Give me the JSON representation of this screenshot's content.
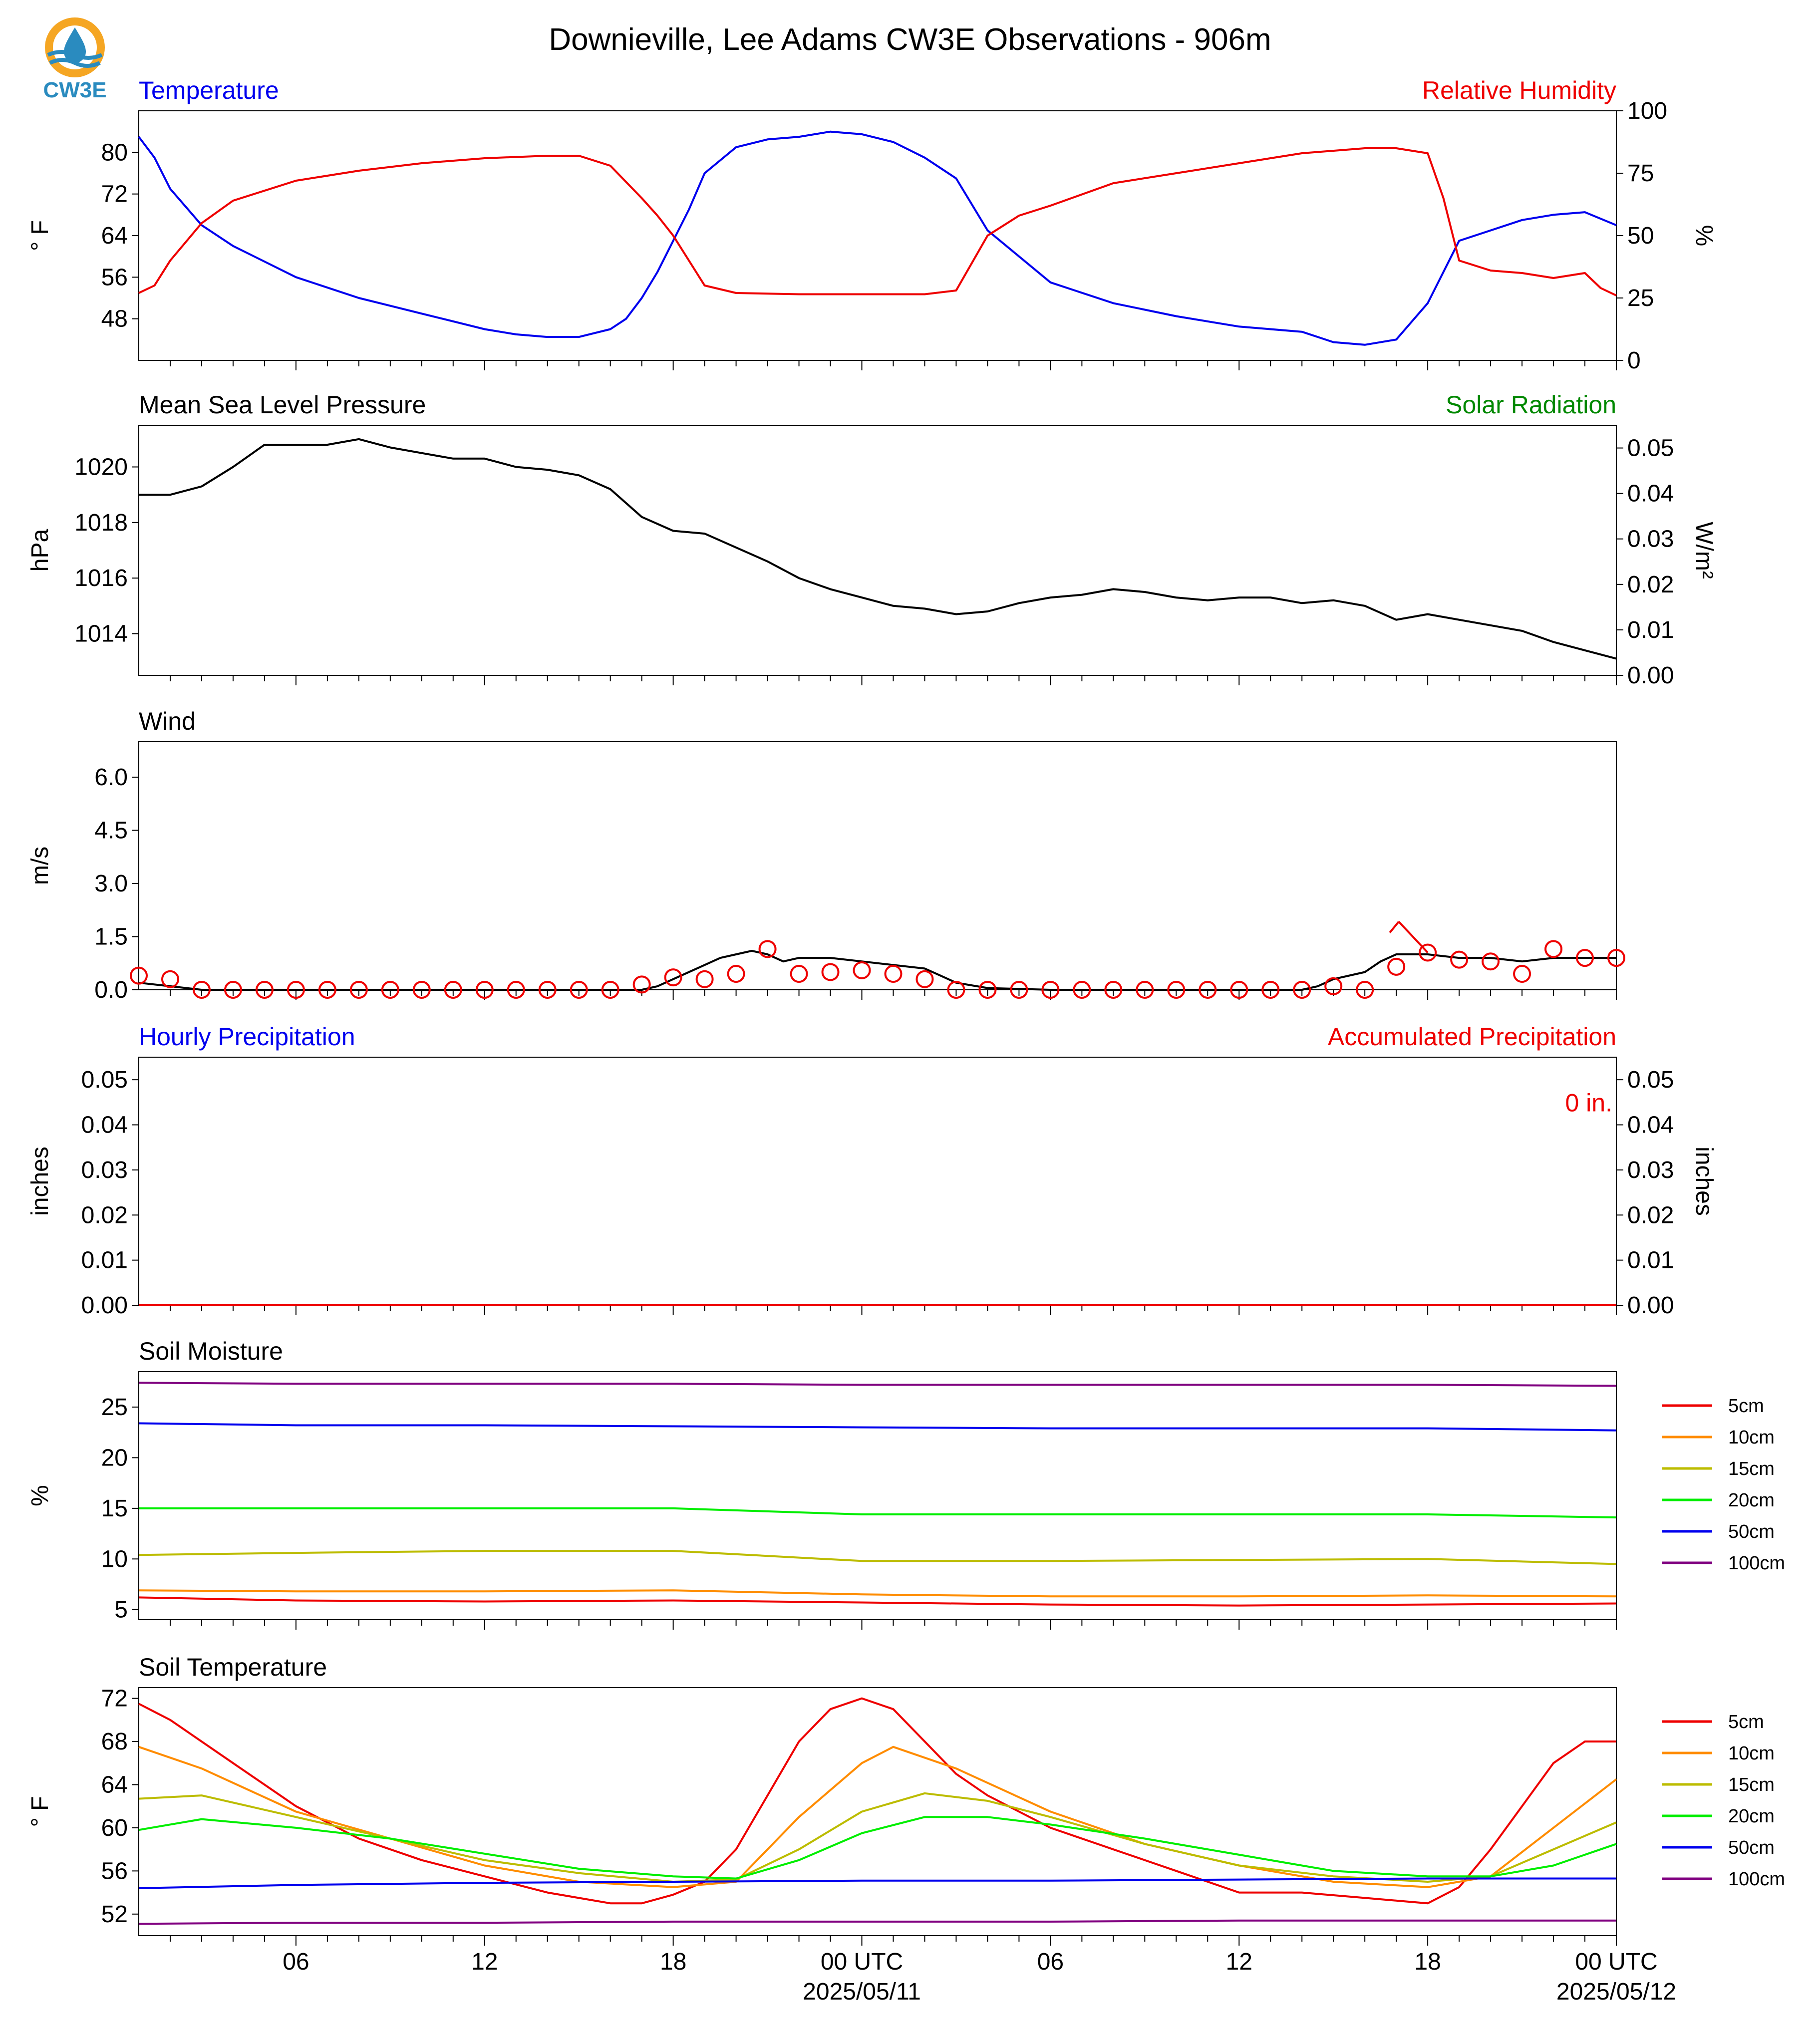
{
  "title": "Downieville, Lee Adams CW3E Observations - 906m",
  "logo_text": "CW3E",
  "colors": {
    "blue": "#0000ee",
    "red": "#ee0000",
    "green": "#008800",
    "black": "#000000",
    "orange": "#ff8c00",
    "olive": "#bcbc00",
    "lime": "#00ee00",
    "purple": "#800080"
  },
  "time_axis": {
    "tick_labels": [
      "06",
      "12",
      "18",
      "00 UTC",
      "06",
      "12",
      "18",
      "00 UTC"
    ],
    "date_labels": [
      "2025/05/11",
      "2025/05/12"
    ]
  },
  "chart_data": [
    {
      "type": "line",
      "name": "temperature_rh",
      "title_left": "Temperature",
      "title_right": "Relative Humidity",
      "ylabel_left": "° F",
      "ylabel_right": "%",
      "ylim_left": [
        40,
        88
      ],
      "yticks_left": [
        48,
        56,
        64,
        72,
        80
      ],
      "ylim_right": [
        0,
        100
      ],
      "yticks_right": [
        0,
        25,
        50,
        75,
        100
      ],
      "x_range": [
        1,
        48
      ],
      "series": [
        {
          "label": "Temperature",
          "color": "#0000ee",
          "axis": "left",
          "x": [
            1,
            1.5,
            2,
            3,
            4,
            6,
            8,
            10,
            12,
            13,
            14,
            15,
            16,
            16.5,
            17,
            17.5,
            18,
            18.5,
            19,
            20,
            21,
            22,
            23,
            24,
            25,
            26,
            27,
            28,
            29,
            30,
            32,
            34,
            36,
            38,
            39,
            40,
            41,
            42,
            43,
            43.5,
            44,
            45,
            46,
            47,
            48
          ],
          "y": [
            83,
            79,
            73,
            66,
            62,
            56,
            52,
            49,
            46,
            45,
            44.5,
            44.5,
            46,
            48,
            52,
            57,
            63,
            69,
            76,
            81,
            82.5,
            83,
            84,
            83.5,
            82,
            79,
            75,
            65,
            60,
            55,
            51,
            48.5,
            46.5,
            45.5,
            43.5,
            43,
            44,
            51,
            63,
            64,
            65,
            67,
            68,
            68.5,
            66
          ]
        },
        {
          "label": "Relative Humidity",
          "color": "#ee0000",
          "axis": "right",
          "x": [
            1,
            1.5,
            2,
            3,
            4,
            6,
            8,
            10,
            12,
            14,
            15,
            16,
            17,
            17.5,
            18,
            19,
            20,
            22,
            24,
            26,
            27,
            28,
            29,
            30,
            32,
            34,
            36,
            38,
            40,
            41,
            42,
            42.5,
            43,
            44,
            45,
            46,
            47,
            47.5,
            48
          ],
          "y": [
            27,
            30,
            40,
            55,
            64,
            72,
            76,
            79,
            81,
            82,
            82,
            78,
            65,
            58,
            50,
            30,
            27,
            26.5,
            26.5,
            26.5,
            28,
            50,
            58,
            62,
            71,
            75,
            79,
            83,
            85,
            85,
            83,
            65,
            40,
            36,
            35,
            33,
            35,
            29,
            26
          ]
        }
      ]
    },
    {
      "type": "line",
      "name": "pressure_solar",
      "title_left": "Mean Sea Level Pressure",
      "title_right": "Solar Radiation",
      "ylabel_left": "hPa",
      "ylabel_right": "W/m²",
      "ylim_left": [
        1012.5,
        1021.5
      ],
      "yticks_left": [
        1014,
        1016,
        1018,
        1020
      ],
      "ylim_right": [
        0,
        0.055
      ],
      "yticks_right": [
        0,
        0.01,
        0.02,
        0.03,
        0.04,
        0.05
      ],
      "x_range": [
        1,
        48
      ],
      "series": [
        {
          "label": "Pressure",
          "color": "#000000",
          "axis": "left",
          "x": [
            1,
            2,
            3,
            4,
            5,
            6,
            7,
            8,
            9,
            10,
            11,
            12,
            13,
            14,
            15,
            16,
            17,
            18,
            19,
            20,
            21,
            22,
            23,
            24,
            25,
            26,
            27,
            28,
            29,
            30,
            31,
            32,
            33,
            34,
            35,
            36,
            37,
            38,
            39,
            40,
            41,
            42,
            43,
            44,
            45,
            46,
            47,
            48
          ],
          "y": [
            1019,
            1019,
            1019.3,
            1020,
            1020.8,
            1020.8,
            1020.8,
            1021,
            1020.7,
            1020.5,
            1020.3,
            1020.3,
            1020,
            1019.9,
            1019.7,
            1019.2,
            1018.2,
            1017.7,
            1017.6,
            1017.1,
            1016.6,
            1016,
            1015.6,
            1015.3,
            1015,
            1014.9,
            1014.7,
            1014.8,
            1015.1,
            1015.3,
            1015.4,
            1015.6,
            1015.5,
            1015.3,
            1015.2,
            1015.3,
            1015.3,
            1015.1,
            1015.2,
            1015,
            1014.5,
            1014.7,
            1014.5,
            1014.3,
            1014.1,
            1013.7,
            1013.4,
            1013.1
          ]
        }
      ]
    },
    {
      "type": "line",
      "name": "wind",
      "title_left": "Wind",
      "ylabel_left": "m/s",
      "ylim_left": [
        0,
        7
      ],
      "yticks_left": [
        0.0,
        1.5,
        3.0,
        4.5,
        6.0
      ],
      "x_range": [
        1,
        48
      ],
      "series": [
        {
          "label": "Wind speed",
          "color": "#000000",
          "axis": "left",
          "x": [
            1,
            2,
            3,
            4,
            6,
            8,
            10,
            12,
            14,
            16,
            17,
            17.5,
            18,
            18.5,
            19,
            19.5,
            20,
            20.5,
            21,
            21.5,
            22,
            23,
            24,
            25,
            26,
            26.5,
            27,
            28,
            30,
            32,
            34,
            36,
            37,
            38,
            38.5,
            39,
            40,
            40.5,
            41,
            42,
            43,
            44,
            45,
            46,
            47,
            48
          ],
          "y": [
            0.2,
            0.1,
            0,
            0,
            0,
            0,
            0,
            0,
            0,
            0,
            0,
            0.1,
            0.3,
            0.5,
            0.7,
            0.9,
            1.0,
            1.1,
            1.0,
            0.8,
            0.9,
            0.9,
            0.8,
            0.7,
            0.6,
            0.4,
            0.2,
            0.05,
            0,
            0,
            0,
            0,
            0,
            0,
            0.1,
            0.3,
            0.5,
            0.8,
            1.0,
            1.0,
            0.9,
            0.9,
            0.8,
            0.9,
            0.9,
            0.9
          ]
        },
        {
          "label": "Wind markers",
          "color": "#ee0000",
          "axis": "left",
          "marker": "circle",
          "x": [
            1,
            2,
            3,
            4,
            5,
            6,
            7,
            8,
            9,
            10,
            11,
            12,
            13,
            14,
            15,
            16,
            17,
            18,
            19,
            20,
            21,
            22,
            23,
            24,
            25,
            26,
            27,
            28,
            29,
            30,
            31,
            32,
            33,
            34,
            35,
            36,
            37,
            38,
            39,
            40,
            41,
            42,
            43,
            44,
            45,
            46,
            47,
            48
          ],
          "y": [
            0.4,
            0.3,
            0,
            0,
            0,
            0,
            0,
            0,
            0,
            0,
            0,
            0,
            0,
            0,
            0,
            0,
            0.15,
            0.35,
            0.3,
            0.45,
            1.15,
            0.45,
            0.5,
            0.55,
            0.45,
            0.3,
            0,
            0,
            0,
            0,
            0,
            0,
            0,
            0,
            0,
            0,
            0,
            0,
            0.1,
            0,
            0.65,
            1.05,
            0.85,
            0.8,
            0.45,
            1.15,
            0.9,
            0.9
          ]
        }
      ]
    },
    {
      "type": "line",
      "name": "precipitation",
      "title_left": "Hourly Precipitation",
      "title_right": "Accumulated Precipitation",
      "ylabel_left": "inches",
      "ylabel_right": "inches",
      "ylim_left": [
        0,
        0.055
      ],
      "yticks_left": [
        0.0,
        0.01,
        0.02,
        0.03,
        0.04,
        0.05
      ],
      "ylim_right": [
        0,
        0.055
      ],
      "yticks_right": [
        0.0,
        0.01,
        0.02,
        0.03,
        0.04,
        0.05
      ],
      "annotation": "0 in.",
      "x_range": [
        1,
        48
      ],
      "series": [
        {
          "label": "Hourly Precipitation",
          "color": "#0000ee",
          "axis": "left",
          "x": [
            1,
            48
          ],
          "y": [
            0,
            0
          ]
        },
        {
          "label": "Accumulated Precipitation",
          "color": "#ee0000",
          "axis": "right",
          "x": [
            1,
            48
          ],
          "y": [
            0,
            0
          ]
        }
      ]
    },
    {
      "type": "line",
      "name": "soil_moisture",
      "title_left": "Soil Moisture",
      "ylabel_left": "%",
      "ylim_left": [
        4,
        28.5
      ],
      "yticks_left": [
        5,
        10,
        15,
        20,
        25
      ],
      "x_range": [
        1,
        48
      ],
      "series": [
        {
          "label": "5cm",
          "color": "#ee0000",
          "x": [
            1,
            6,
            12,
            18,
            24,
            30,
            36,
            42,
            48
          ],
          "y": [
            6.2,
            5.9,
            5.8,
            5.9,
            5.7,
            5.5,
            5.4,
            5.5,
            5.6
          ]
        },
        {
          "label": "10cm",
          "color": "#ff8c00",
          "x": [
            1,
            6,
            12,
            18,
            24,
            30,
            36,
            42,
            48
          ],
          "y": [
            6.9,
            6.8,
            6.8,
            6.9,
            6.5,
            6.3,
            6.3,
            6.4,
            6.3
          ]
        },
        {
          "label": "15cm",
          "color": "#bcbc00",
          "x": [
            1,
            6,
            12,
            18,
            24,
            30,
            36,
            42,
            48
          ],
          "y": [
            10.4,
            10.6,
            10.8,
            10.8,
            9.8,
            9.8,
            9.9,
            10.0,
            9.5
          ]
        },
        {
          "label": "20cm",
          "color": "#00ee00",
          "x": [
            1,
            6,
            12,
            18,
            24,
            30,
            36,
            42,
            48
          ],
          "y": [
            15.0,
            15.0,
            15.0,
            15.0,
            14.4,
            14.4,
            14.4,
            14.4,
            14.1
          ]
        },
        {
          "label": "50cm",
          "color": "#0000ee",
          "x": [
            1,
            6,
            12,
            18,
            24,
            30,
            36,
            42,
            48
          ],
          "y": [
            23.4,
            23.2,
            23.2,
            23.1,
            23.0,
            22.9,
            22.9,
            22.9,
            22.7
          ]
        },
        {
          "label": "100cm",
          "color": "#800080",
          "x": [
            1,
            6,
            12,
            18,
            24,
            30,
            36,
            42,
            48
          ],
          "y": [
            27.4,
            27.3,
            27.3,
            27.3,
            27.2,
            27.2,
            27.2,
            27.2,
            27.1
          ]
        }
      ]
    },
    {
      "type": "line",
      "name": "soil_temperature",
      "title_left": "Soil Temperature",
      "ylabel_left": "° F",
      "ylim_left": [
        50,
        73
      ],
      "yticks_left": [
        52,
        56,
        60,
        64,
        68,
        72
      ],
      "x_range": [
        1,
        48
      ],
      "series": [
        {
          "label": "5cm",
          "color": "#ee0000",
          "x": [
            1,
            2,
            4,
            6,
            8,
            10,
            12,
            14,
            16,
            17,
            18,
            19,
            20,
            21,
            22,
            23,
            24,
            25,
            26,
            27,
            28,
            30,
            32,
            34,
            36,
            38,
            40,
            42,
            43,
            44,
            45,
            46,
            47,
            48
          ],
          "y": [
            71.5,
            70,
            66,
            62,
            59,
            57,
            55.5,
            54,
            53,
            53,
            53.8,
            55,
            58,
            63,
            68,
            71,
            72,
            71,
            68,
            65,
            63,
            60,
            58,
            56,
            54,
            54,
            53.5,
            53,
            54.5,
            58,
            62,
            66,
            68,
            68
          ]
        },
        {
          "label": "10cm",
          "color": "#ff8c00",
          "x": [
            1,
            3,
            6,
            9,
            12,
            15,
            18,
            20,
            22,
            24,
            25,
            27,
            30,
            33,
            36,
            39,
            42,
            44,
            46,
            48
          ],
          "y": [
            67.5,
            65.5,
            61.5,
            59,
            56.5,
            55,
            54.5,
            55,
            61,
            66,
            67.5,
            65.5,
            61.5,
            58.5,
            56.5,
            55,
            54.5,
            55.5,
            60,
            64.5
          ]
        },
        {
          "label": "15cm",
          "color": "#bcbc00",
          "x": [
            1,
            3,
            6,
            9,
            12,
            15,
            18,
            20,
            22,
            24,
            26,
            28,
            30,
            33,
            36,
            39,
            42,
            44,
            46,
            48
          ],
          "y": [
            62.7,
            63,
            61,
            59,
            57,
            55.8,
            55,
            55.2,
            58,
            61.5,
            63.2,
            62.5,
            61,
            58.5,
            56.5,
            55.5,
            55,
            55.5,
            58,
            60.5
          ]
        },
        {
          "label": "20cm",
          "color": "#00ee00",
          "x": [
            1,
            3,
            6,
            9,
            12,
            15,
            18,
            20,
            22,
            24,
            26,
            28,
            30,
            33,
            36,
            39,
            42,
            44,
            46,
            48
          ],
          "y": [
            59.8,
            60.8,
            60,
            59,
            57.6,
            56.2,
            55.5,
            55.3,
            57,
            59.5,
            61,
            61,
            60.3,
            59,
            57.5,
            56,
            55.5,
            55.5,
            56.5,
            58.5
          ]
        },
        {
          "label": "50cm",
          "color": "#0000ee",
          "x": [
            1,
            6,
            12,
            18,
            24,
            30,
            36,
            42,
            48
          ],
          "y": [
            54.4,
            54.7,
            54.9,
            55,
            55.1,
            55.1,
            55.2,
            55.3,
            55.3
          ]
        },
        {
          "label": "100cm",
          "color": "#800080",
          "x": [
            1,
            6,
            12,
            18,
            24,
            30,
            36,
            42,
            48
          ],
          "y": [
            51.1,
            51.2,
            51.2,
            51.3,
            51.3,
            51.3,
            51.4,
            51.4,
            51.4
          ]
        }
      ],
      "legend_placement": "right"
    }
  ]
}
